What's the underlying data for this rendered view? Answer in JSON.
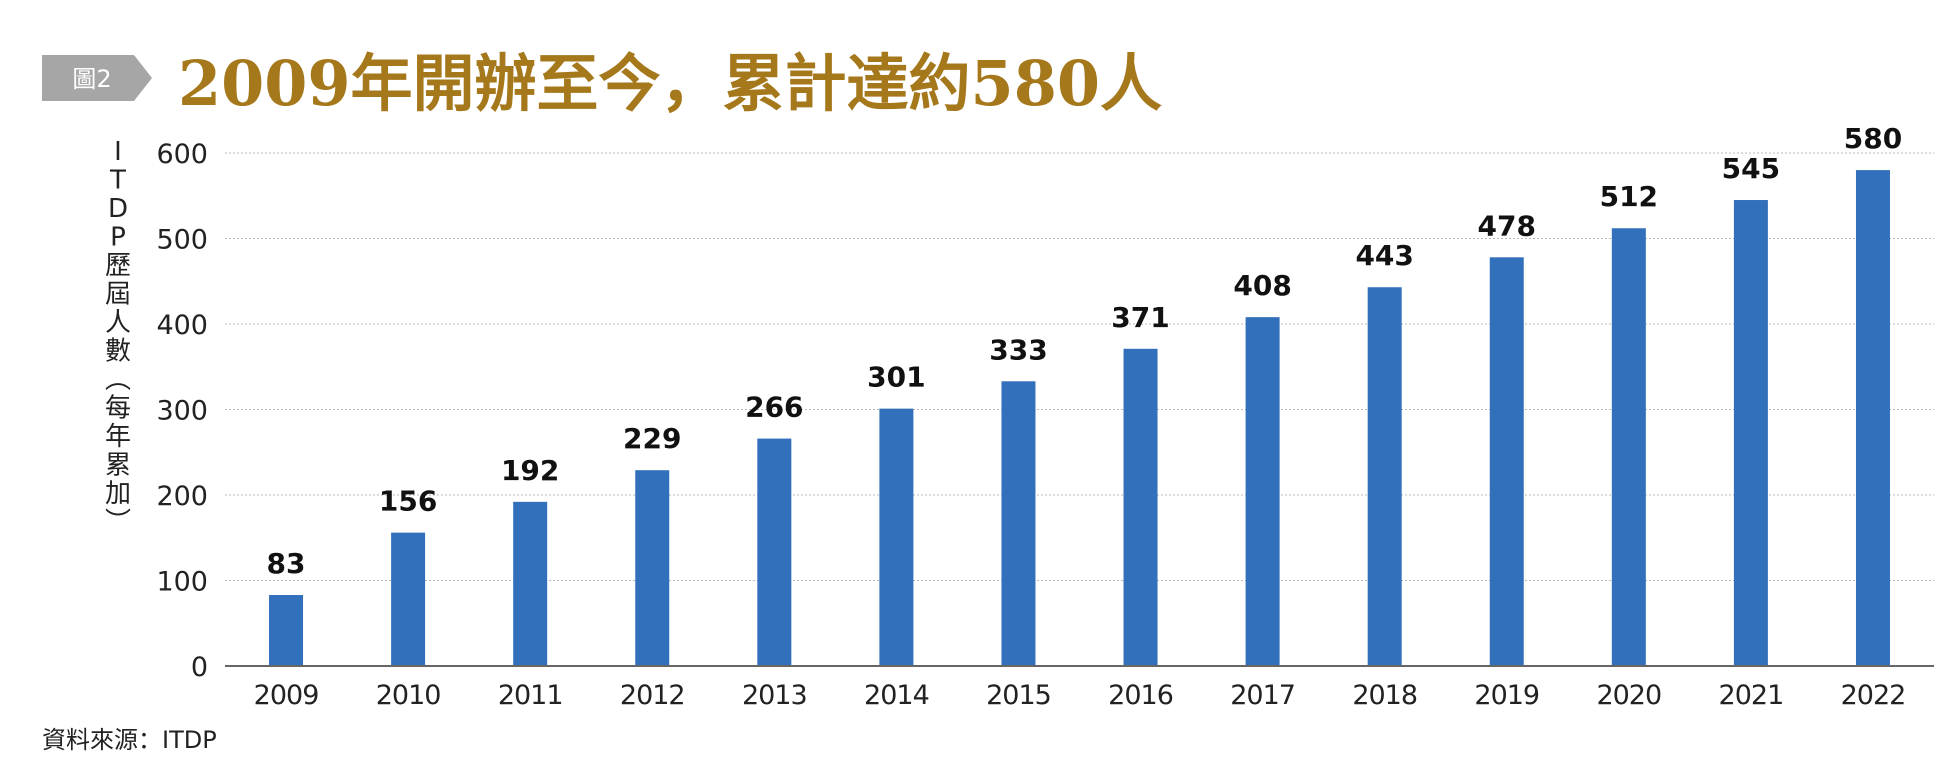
{
  "figure_label": "圖2",
  "source": "資料來源：ITDP",
  "colors": {
    "title": "#a6781c",
    "bar": "#3270bb",
    "badge": "#a6a6a6",
    "grid": "#b8b8b8",
    "axis": "#666666"
  },
  "chart_data": {
    "type": "bar",
    "title": "2009年開辦至今，累計達約580人",
    "xlabel": "",
    "ylabel": "ITDP歷屆人數（每年累加）",
    "categories": [
      "2009",
      "2010",
      "2011",
      "2012",
      "2013",
      "2014",
      "2015",
      "2016",
      "2017",
      "2018",
      "2019",
      "2020",
      "2021",
      "2022"
    ],
    "values": [
      83,
      156,
      192,
      229,
      266,
      301,
      333,
      371,
      408,
      443,
      478,
      512,
      545,
      580
    ],
    "ylim": [
      0,
      600
    ],
    "yticks": [
      0,
      100,
      200,
      300,
      400,
      500,
      600
    ],
    "grid": true,
    "data_labels": true,
    "legend": "none"
  }
}
